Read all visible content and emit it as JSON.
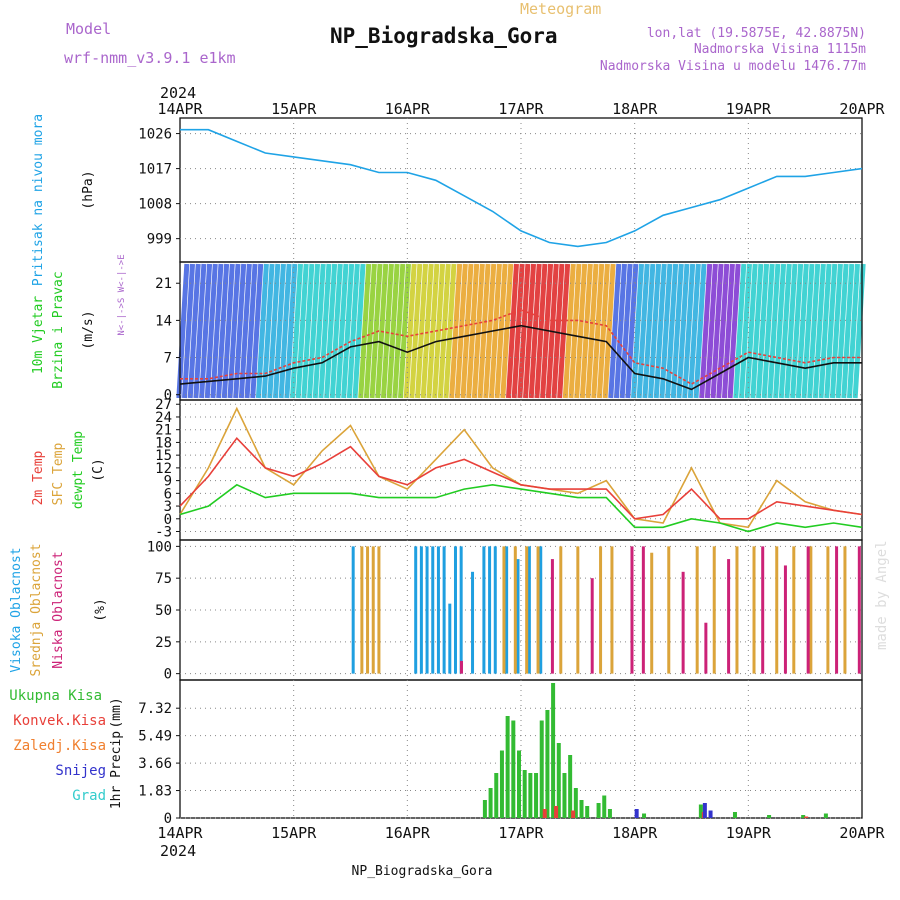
{
  "header": {
    "model_label": "Model",
    "model_name": "wrf-nmm_v3.9.1 e1km",
    "title": "NP_Biogradska_Gora",
    "meteogram_label": "Meteogram",
    "lonlat": "lon,lat (19.5875E, 42.8875N)",
    "elevation": "Nadmorska Visina 1115m",
    "model_elevation": "Nadmorska Visina u modelu 1476.77m",
    "year": "2024",
    "footer_title": "NP_Biogradska_Gora",
    "watermark": "made by Angel"
  },
  "colors": {
    "pressure": "#1fa3e6",
    "sfc_temp": "#dba43a",
    "t2m": "#e8403a",
    "dewpoint": "#22cc22",
    "high_cloud": "#1f9fe0",
    "mid_cloud": "#dba43a",
    "low_cloud": "#cc2277",
    "total_precip": "#33bb33",
    "conv_precip": "#e8403a",
    "frozen_precip": "#f08030",
    "snow": "#3333cc",
    "graupel": "#33cccc",
    "model_label": "#aa66cc",
    "meteogram_label": "#e8c070",
    "watermark": "#dddddd"
  },
  "chart_data": {
    "type": "meteogram",
    "x_axis": {
      "ticks": [
        "14APR",
        "15APR",
        "16APR",
        "17APR",
        "18APR",
        "19APR",
        "20APR"
      ],
      "range_days": [
        0,
        6
      ]
    },
    "panels": [
      {
        "id": "pressure",
        "type": "line",
        "ylabel": "Pritisak na nivou mora",
        "unit": "(hPa)",
        "ylim": [
          993,
          1030
        ],
        "yticks": [
          999,
          1008,
          1017,
          1026
        ],
        "series": [
          {
            "name": "pressure",
            "x": [
              0,
              0.25,
              0.5,
              0.75,
              1.0,
              1.25,
              1.5,
              1.75,
              2.0,
              2.25,
              2.5,
              2.75,
              3.0,
              3.25,
              3.5,
              3.75,
              4.0,
              4.25,
              4.5,
              4.75,
              5.0,
              5.25,
              5.5,
              5.75,
              6.0
            ],
            "y": [
              1027,
              1027,
              1024,
              1021,
              1020,
              1019,
              1018,
              1016,
              1016,
              1014,
              1010,
              1006,
              1001,
              998,
              997,
              998,
              1001,
              1005,
              1007,
              1009,
              1012,
              1015,
              1015,
              1016,
              1017
            ]
          }
        ]
      },
      {
        "id": "wind",
        "type": "line",
        "ylabel_1": "10m Vjetar",
        "ylabel_2": "Brzina i Pravac",
        "unit": "(m/s)",
        "direction_key": "N<-|->S  W<-|->E",
        "ylim": [
          -1,
          25
        ],
        "yticks": [
          0,
          7,
          14,
          21
        ],
        "series": [
          {
            "name": "speed",
            "x": [
              0,
              0.25,
              0.5,
              0.75,
              1.0,
              1.25,
              1.5,
              1.75,
              2.0,
              2.25,
              2.5,
              2.75,
              3.0,
              3.25,
              3.5,
              3.75,
              4.0,
              4.25,
              4.5,
              4.75,
              5.0,
              5.25,
              5.5,
              5.75,
              6.0
            ],
            "y": [
              2,
              2.5,
              3,
              3.5,
              5,
              6,
              9,
              10,
              8,
              10,
              11,
              12,
              13,
              12,
              11,
              10,
              4,
              3,
              1,
              4,
              7,
              6,
              5,
              6,
              6
            ]
          },
          {
            "name": "gust",
            "x": [
              0,
              0.25,
              0.5,
              0.75,
              1.0,
              1.25,
              1.5,
              1.75,
              2.0,
              2.25,
              2.5,
              2.75,
              3.0,
              3.25,
              3.5,
              3.75,
              4.0,
              4.25,
              4.5,
              4.75,
              5.0,
              5.25,
              5.5,
              5.75,
              6.0
            ],
            "y": [
              3,
              3,
              4,
              4,
              6,
              7,
              10,
              12,
              11,
              12,
              13,
              14,
              16,
              14,
              14,
              13,
              6,
              5,
              2,
              5,
              8,
              7,
              6,
              7,
              7
            ]
          }
        ]
      },
      {
        "id": "temperature",
        "type": "line",
        "ylabel_1": "2m Temp",
        "ylabel_2": "SFC Temp",
        "ylabel_3": "dewpt Temp",
        "unit": "(C)",
        "ylim": [
          -5,
          28
        ],
        "yticks": [
          -3,
          0,
          3,
          6,
          9,
          12,
          15,
          18,
          21,
          24,
          27
        ],
        "series": [
          {
            "name": "sfc_temp",
            "x": [
              0,
              0.25,
              0.5,
              0.75,
              1.0,
              1.25,
              1.5,
              1.75,
              2.0,
              2.25,
              2.5,
              2.75,
              3.0,
              3.25,
              3.5,
              3.75,
              4.0,
              4.25,
              4.5,
              4.75,
              5.0,
              5.25,
              5.5,
              5.75,
              6.0
            ],
            "y": [
              1,
              12,
              26,
              12,
              8,
              16,
              22,
              10,
              7,
              14,
              21,
              12,
              8,
              7,
              6,
              9,
              0,
              -1,
              12,
              -1,
              -2,
              9,
              4,
              2,
              1
            ]
          },
          {
            "name": "t2m",
            "x": [
              0,
              0.25,
              0.5,
              0.75,
              1.0,
              1.25,
              1.5,
              1.75,
              2.0,
              2.25,
              2.5,
              2.75,
              3.0,
              3.25,
              3.5,
              3.75,
              4.0,
              4.25,
              4.5,
              4.75,
              5.0,
              5.25,
              5.5,
              5.75,
              6.0
            ],
            "y": [
              3,
              10,
              19,
              12,
              10,
              13,
              17,
              10,
              8,
              12,
              14,
              11,
              8,
              7,
              7,
              7,
              0,
              1,
              7,
              0,
              0,
              4,
              3,
              2,
              1
            ]
          },
          {
            "name": "dewpoint",
            "x": [
              0,
              0.25,
              0.5,
              0.75,
              1.0,
              1.25,
              1.5,
              1.75,
              2.0,
              2.25,
              2.5,
              2.75,
              3.0,
              3.25,
              3.5,
              3.75,
              4.0,
              4.25,
              4.5,
              4.75,
              5.0,
              5.25,
              5.5,
              5.75,
              6.0
            ],
            "y": [
              1,
              3,
              8,
              5,
              6,
              6,
              6,
              5,
              5,
              5,
              7,
              8,
              7,
              6,
              5,
              5,
              -2,
              -2,
              0,
              -1,
              -3,
              -1,
              -2,
              -1,
              -2
            ]
          }
        ]
      },
      {
        "id": "clouds",
        "type": "bar",
        "ylabel_1": "Visoka Oblacnost",
        "ylabel_2": "Srednja Oblacnost",
        "ylabel_3": "Niska Oblacnost",
        "unit": "(%)",
        "ylim": [
          -5,
          105
        ],
        "yticks": [
          0,
          25,
          50,
          75,
          100
        ],
        "series": [
          {
            "name": "high",
            "x": [
              1.55,
              2.1,
              2.15,
              2.2,
              2.25,
              2.3,
              2.35,
              2.4,
              2.45,
              2.5,
              2.6,
              2.7,
              2.75,
              2.8,
              2.9,
              3.0,
              3.1,
              3.2
            ],
            "values": [
              100,
              100,
              100,
              100,
              100,
              100,
              100,
              55,
              100,
              100,
              80,
              100,
              100,
              100,
              100,
              90,
              100,
              100
            ]
          },
          {
            "name": "mid",
            "x": [
              1.6,
              1.65,
              1.7,
              1.75,
              2.85,
              2.95,
              3.05,
              3.15,
              3.35,
              3.5,
              3.7,
              3.8,
              4.15,
              4.3,
              4.55,
              4.7,
              4.9,
              5.05,
              5.25,
              5.4,
              5.55,
              5.7,
              5.85
            ],
            "values": [
              100,
              100,
              100,
              100,
              100,
              100,
              100,
              100,
              100,
              100,
              100,
              100,
              95,
              100,
              100,
              100,
              100,
              100,
              100,
              100,
              100,
              100,
              100
            ]
          },
          {
            "name": "low",
            "x": [
              2.45,
              3.25,
              3.6,
              3.95,
              4.05,
              4.4,
              4.6,
              4.8,
              5.1,
              5.3,
              5.5,
              5.75,
              5.95
            ],
            "values": [
              10,
              90,
              75,
              100,
              100,
              80,
              40,
              90,
              100,
              85,
              100,
              100,
              100
            ]
          }
        ]
      },
      {
        "id": "precip",
        "type": "bar",
        "ylabel": "1hr Precip",
        "unit": "(mm)",
        "legend": [
          "Ukupna Kisa",
          "Konvek.Kisa",
          "Zaledj.Kisa",
          "Snijeg",
          "Grad"
        ],
        "ylim": [
          0,
          9.2
        ],
        "yticks": [
          0,
          1.83,
          3.66,
          5.49,
          7.32
        ],
        "series": [
          {
            "name": "total",
            "x": [
              2.7,
              2.75,
              2.8,
              2.85,
              2.9,
              2.95,
              3.0,
              3.05,
              3.1,
              3.15,
              3.2,
              3.25,
              3.3,
              3.35,
              3.4,
              3.45,
              3.5,
              3.55,
              3.6,
              3.7,
              3.75,
              3.8,
              4.1,
              4.6,
              4.9,
              5.2,
              5.5,
              5.7
            ],
            "values": [
              1.2,
              2.0,
              3.0,
              4.5,
              6.8,
              6.5,
              4.5,
              3.2,
              3.0,
              3.0,
              6.5,
              7.2,
              9.0,
              5.0,
              3.0,
              4.2,
              2.0,
              1.2,
              0.8,
              1.0,
              1.5,
              0.6,
              0.3,
              0.9,
              0.4,
              0.2,
              0.2,
              0.3
            ]
          },
          {
            "name": "convective",
            "x": [
              3.2,
              3.3,
              3.45,
              4.6,
              5.5
            ],
            "values": [
              0.6,
              0.8,
              0.5,
              0.4,
              0.1
            ]
          },
          {
            "name": "snow",
            "x": [
              4.0,
              4.6,
              4.65
            ],
            "values": [
              0.6,
              1.0,
              0.5
            ]
          }
        ]
      }
    ]
  }
}
